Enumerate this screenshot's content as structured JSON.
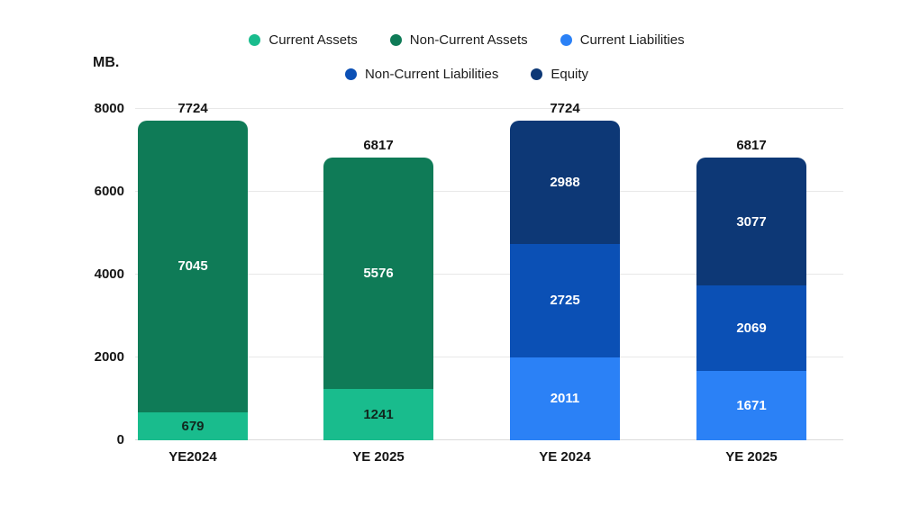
{
  "page": {
    "background": "#ffffff",
    "text_color": "#1b1b1b"
  },
  "legend": {
    "rows": [
      [
        {
          "label": "Current Assets",
          "color": "#19bc8d"
        },
        {
          "label": "Non-Current Assets",
          "color": "#0f7b57"
        },
        {
          "label": "Current Liabilities",
          "color": "#2b81f6"
        }
      ],
      [
        {
          "label": "Non-Current Liabilities",
          "color": "#0b50b5"
        },
        {
          "label": "Equity",
          "color": "#0d3876"
        }
      ]
    ]
  },
  "chart_data": {
    "type": "bar",
    "stacked": true,
    "title": "",
    "ylabel": "MB.",
    "xlabel": "",
    "ylim": [
      0,
      8000
    ],
    "y_ticks": [
      0,
      2000,
      4000,
      6000,
      8000
    ],
    "grid": true,
    "legend_position": "top",
    "categories": [
      "YE2024",
      "YE 2025",
      "YE 2024",
      "YE 2025"
    ],
    "totals": [
      7724,
      6817,
      7724,
      6817
    ],
    "series": [
      {
        "name": "Current Assets",
        "color": "#19bc8d",
        "label_color": "#11271e",
        "values": [
          679,
          1241,
          null,
          null
        ]
      },
      {
        "name": "Non-Current Assets",
        "color": "#0f7b57",
        "label_color": "#ffffff",
        "values": [
          7045,
          5576,
          null,
          null
        ]
      },
      {
        "name": "Current Liabilities",
        "color": "#2b81f6",
        "label_color": "#ffffff",
        "values": [
          null,
          null,
          2011,
          1671
        ]
      },
      {
        "name": "Non-Current Liabilities",
        "color": "#0b50b5",
        "label_color": "#ffffff",
        "values": [
          null,
          null,
          2725,
          2069
        ]
      },
      {
        "name": "Equity",
        "color": "#0d3876",
        "label_color": "#ffffff",
        "values": [
          null,
          null,
          2988,
          3077
        ]
      }
    ]
  }
}
